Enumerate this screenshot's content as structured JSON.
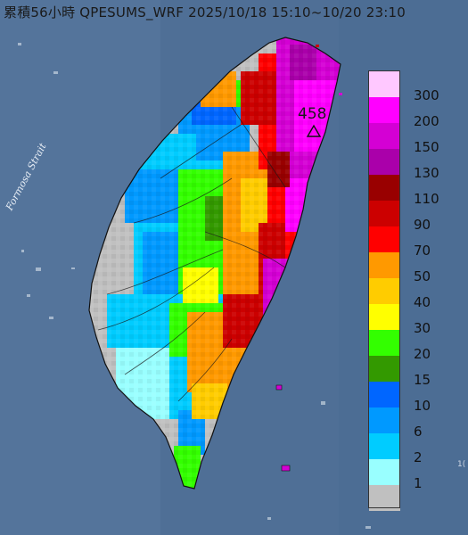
{
  "title": "累積56小時 QPESUMS_WRF 2025/10/18 15:10~10/20 23:10",
  "strait_label": "Formosa Strait",
  "peak": {
    "value": "458",
    "marker": "triangle-marker-icon"
  },
  "side_mark": "1(",
  "legend": [
    {
      "label": "300",
      "color": "#ffc8ff"
    },
    {
      "label": "200",
      "color": "#ff00ff"
    },
    {
      "label": "150",
      "color": "#d400d4"
    },
    {
      "label": "130",
      "color": "#aa00aa"
    },
    {
      "label": "110",
      "color": "#990000"
    },
    {
      "label": "90",
      "color": "#cc0000"
    },
    {
      "label": "70",
      "color": "#ff0000"
    },
    {
      "label": "50",
      "color": "#ff9900"
    },
    {
      "label": "40",
      "color": "#ffcc00"
    },
    {
      "label": "30",
      "color": "#ffff00"
    },
    {
      "label": "20",
      "color": "#33ff00"
    },
    {
      "label": "15",
      "color": "#339900"
    },
    {
      "label": "10",
      "color": "#0066ff"
    },
    {
      "label": "6",
      "color": "#0099ff"
    },
    {
      "label": "2",
      "color": "#00ccff"
    },
    {
      "label": "1",
      "color": "#99ffff"
    },
    {
      "label": "",
      "color": "#c0c0c0"
    }
  ]
}
